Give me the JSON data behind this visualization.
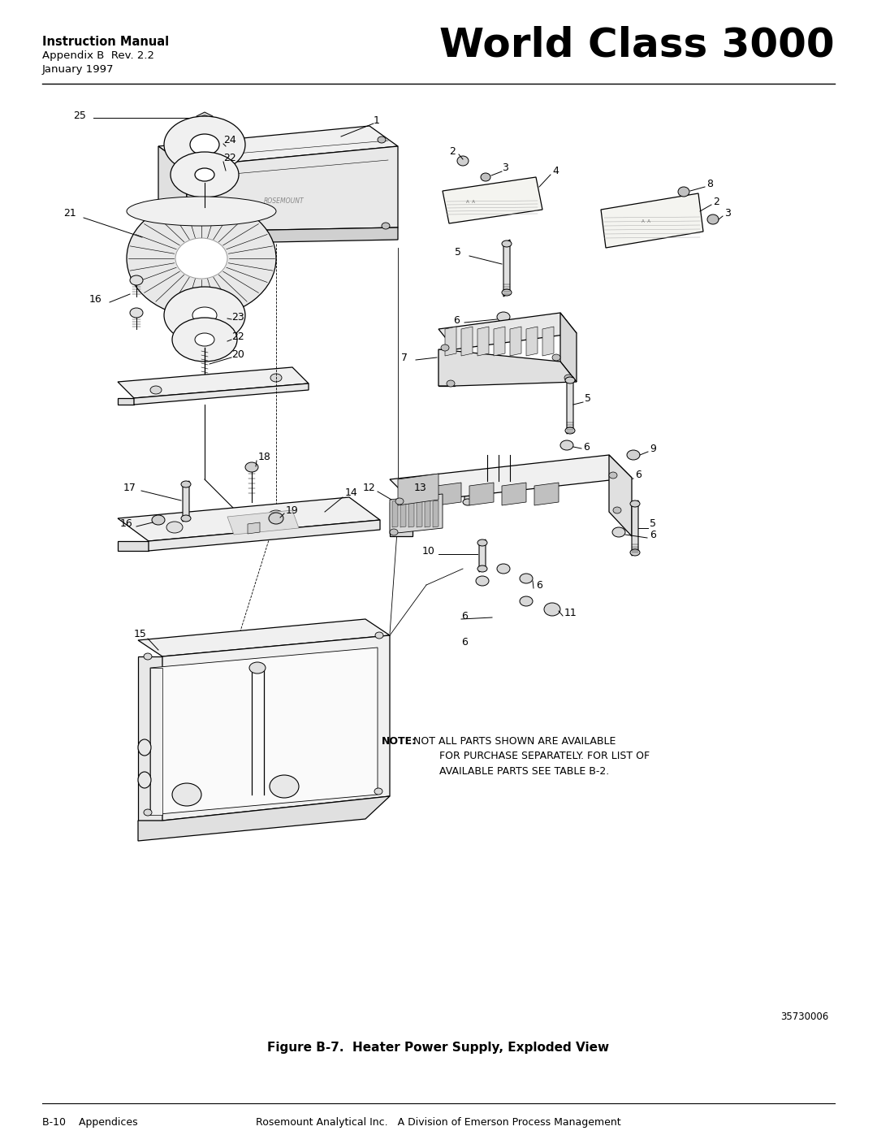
{
  "title_bold": "Instruction Manual",
  "title_line2": "Appendix B  Rev. 2.2",
  "title_line3": "January 1997",
  "header_right": "World Class 3000",
  "figure_caption": "Figure B-7.  Heater Power Supply, Exploded View",
  "part_number": "35730006",
  "footer_left": "B-10    Appendices",
  "footer_right": "Rosemount Analytical Inc.   A Division of Emerson Process Management",
  "note_bold": "NOTE:",
  "note_text": " NOT ALL PARTS SHOWN ARE AVAILABLE\n         FOR PURCHASE SEPARATELY. FOR LIST OF\n         AVAILABLE PARTS SEE TABLE B-2.",
  "bg_color": "#ffffff",
  "text_color": "#000000",
  "diagram_color": "#000000",
  "lw_main": 0.9,
  "lw_thin": 0.5,
  "lw_thick": 1.3
}
